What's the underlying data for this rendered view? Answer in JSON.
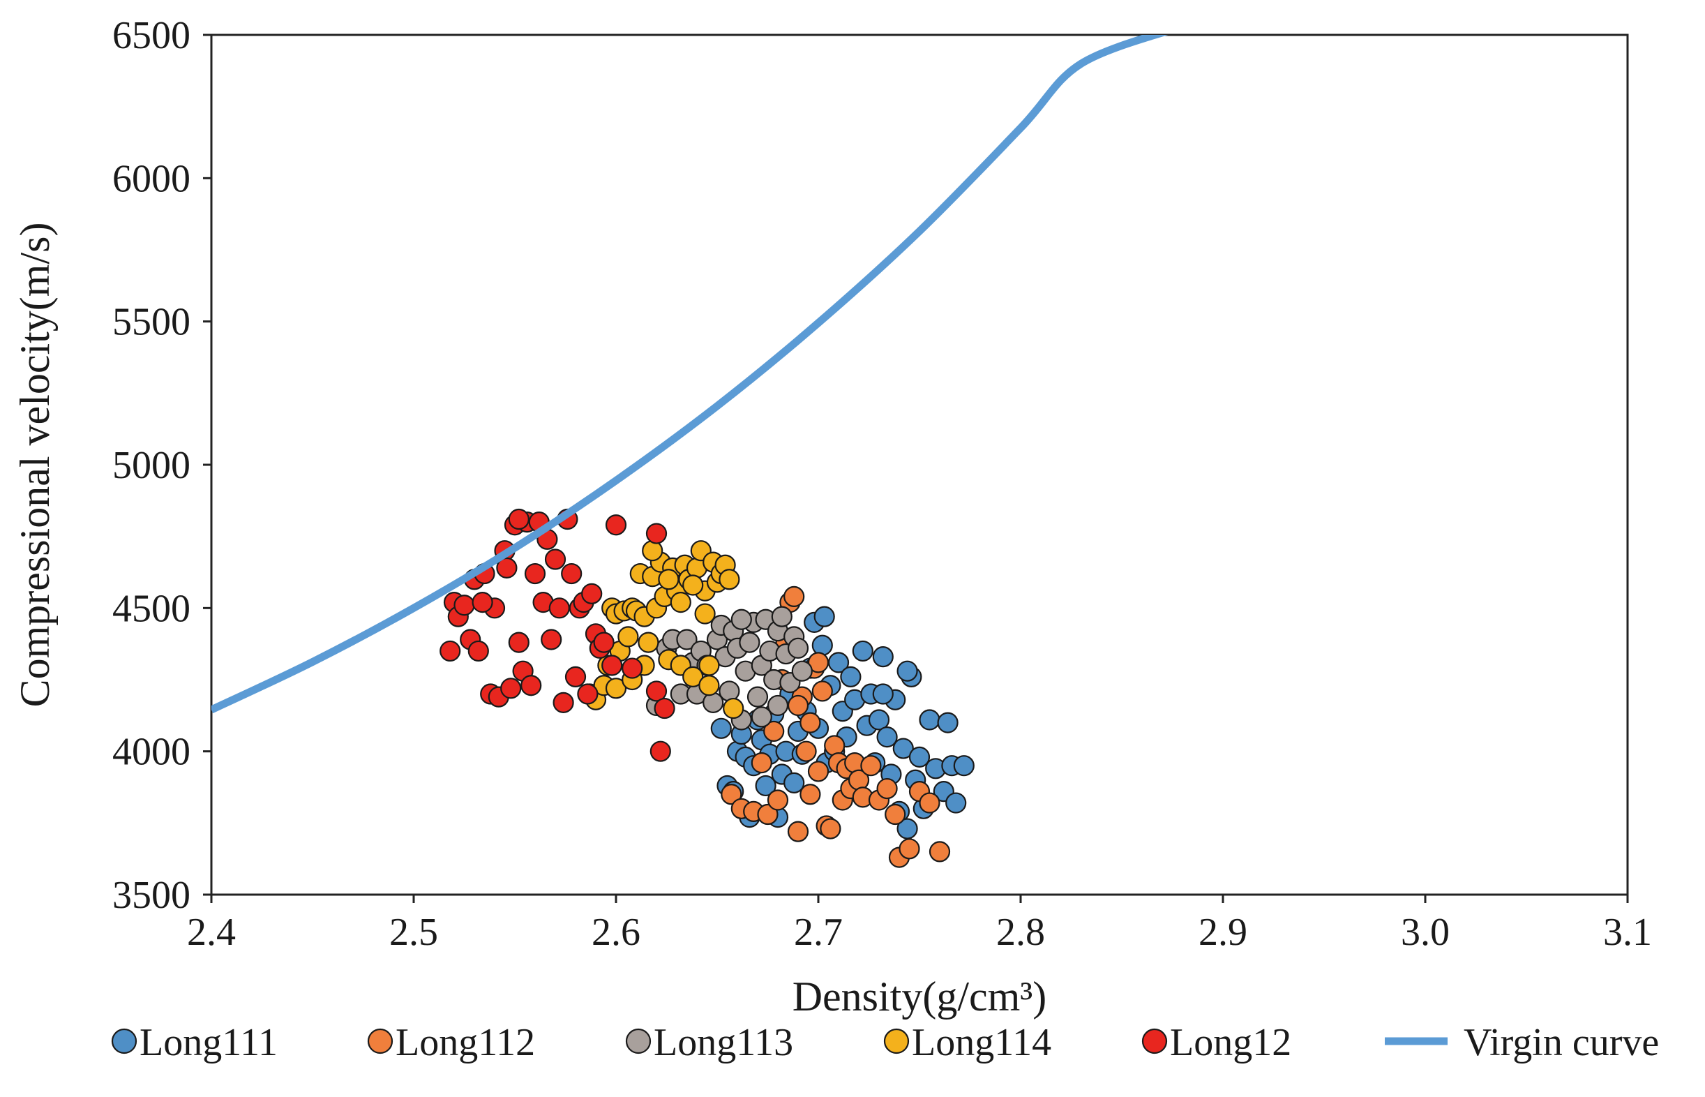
{
  "chart_data": {
    "type": "scatter",
    "xlabel": "Density(g/cm³)",
    "ylabel": "Compressional velocity(m/s)",
    "xlim": [
      2.4,
      3.1
    ],
    "ylim": [
      3500,
      6500
    ],
    "x_ticks": [
      "2.4",
      "2.5",
      "2.6",
      "2.7",
      "2.8",
      "2.9",
      "3.0",
      "3.1"
    ],
    "y_ticks": [
      "3500",
      "4000",
      "4500",
      "5000",
      "5500",
      "6000",
      "6500"
    ],
    "grid": false,
    "legend_position": "bottom",
    "series": [
      {
        "name": "Long111",
        "color": "#4f8fc6",
        "points": [
          [
            2.652,
            4080
          ],
          [
            2.655,
            3880
          ],
          [
            2.658,
            3860
          ],
          [
            2.66,
            4000
          ],
          [
            2.662,
            4060
          ],
          [
            2.664,
            3980
          ],
          [
            2.666,
            3770
          ],
          [
            2.668,
            3950
          ],
          [
            2.67,
            4110
          ],
          [
            2.672,
            4040
          ],
          [
            2.674,
            3880
          ],
          [
            2.676,
            3990
          ],
          [
            2.678,
            4130
          ],
          [
            2.68,
            3770
          ],
          [
            2.682,
            3920
          ],
          [
            2.684,
            4000
          ],
          [
            2.686,
            4200
          ],
          [
            2.688,
            3890
          ],
          [
            2.69,
            4070
          ],
          [
            2.692,
            3990
          ],
          [
            2.694,
            4140
          ],
          [
            2.696,
            4290
          ],
          [
            2.698,
            4450
          ],
          [
            2.7,
            4080
          ],
          [
            2.702,
            4370
          ],
          [
            2.704,
            3960
          ],
          [
            2.706,
            4230
          ],
          [
            2.708,
            4000
          ],
          [
            2.71,
            4310
          ],
          [
            2.712,
            4140
          ],
          [
            2.714,
            4050
          ],
          [
            2.716,
            4260
          ],
          [
            2.718,
            4180
          ],
          [
            2.72,
            3900
          ],
          [
            2.722,
            4350
          ],
          [
            2.724,
            4090
          ],
          [
            2.726,
            4200
          ],
          [
            2.728,
            3960
          ],
          [
            2.73,
            4110
          ],
          [
            2.732,
            4330
          ],
          [
            2.734,
            4050
          ],
          [
            2.736,
            3920
          ],
          [
            2.738,
            4180
          ],
          [
            2.74,
            3790
          ],
          [
            2.742,
            4010
          ],
          [
            2.744,
            3730
          ],
          [
            2.746,
            4260
          ],
          [
            2.748,
            3900
          ],
          [
            2.75,
            3980
          ],
          [
            2.752,
            3800
          ],
          [
            2.755,
            4110
          ],
          [
            2.758,
            3940
          ],
          [
            2.762,
            3860
          ],
          [
            2.764,
            4100
          ],
          [
            2.766,
            3950
          ],
          [
            2.768,
            3820
          ],
          [
            2.772,
            3950
          ],
          [
            2.744,
            4280
          ],
          [
            2.732,
            4200
          ],
          [
            2.703,
            4470
          ]
        ]
      },
      {
        "name": "Long112",
        "color": "#f07f3c",
        "points": [
          [
            2.657,
            3850
          ],
          [
            2.662,
            3800
          ],
          [
            2.668,
            3790
          ],
          [
            2.675,
            3780
          ],
          [
            2.68,
            3830
          ],
          [
            2.684,
            4380
          ],
          [
            2.686,
            4520
          ],
          [
            2.688,
            4540
          ],
          [
            2.69,
            3720
          ],
          [
            2.692,
            4190
          ],
          [
            2.694,
            4000
          ],
          [
            2.696,
            3850
          ],
          [
            2.698,
            4290
          ],
          [
            2.7,
            3930
          ],
          [
            2.702,
            4210
          ],
          [
            2.704,
            3740
          ],
          [
            2.706,
            3730
          ],
          [
            2.708,
            4020
          ],
          [
            2.71,
            3960
          ],
          [
            2.712,
            3830
          ],
          [
            2.714,
            3940
          ],
          [
            2.716,
            3870
          ],
          [
            2.718,
            3960
          ],
          [
            2.72,
            3900
          ],
          [
            2.722,
            3840
          ],
          [
            2.726,
            3950
          ],
          [
            2.73,
            3830
          ],
          [
            2.734,
            3870
          ],
          [
            2.738,
            3780
          ],
          [
            2.74,
            3630
          ],
          [
            2.745,
            3660
          ],
          [
            2.75,
            3860
          ],
          [
            2.755,
            3820
          ],
          [
            2.76,
            3650
          ],
          [
            2.682,
            4250
          ],
          [
            2.69,
            4160
          ],
          [
            2.696,
            4100
          ],
          [
            2.7,
            4310
          ],
          [
            2.678,
            4070
          ],
          [
            2.672,
            3960
          ]
        ]
      },
      {
        "name": "Long113",
        "color": "#a8a09c",
        "points": [
          [
            2.62,
            4160
          ],
          [
            2.625,
            4360
          ],
          [
            2.628,
            4390
          ],
          [
            2.632,
            4200
          ],
          [
            2.635,
            4390
          ],
          [
            2.638,
            4310
          ],
          [
            2.64,
            4200
          ],
          [
            2.642,
            4350
          ],
          [
            2.645,
            4300
          ],
          [
            2.648,
            4170
          ],
          [
            2.65,
            4390
          ],
          [
            2.652,
            4440
          ],
          [
            2.654,
            4330
          ],
          [
            2.656,
            4210
          ],
          [
            2.658,
            4420
          ],
          [
            2.66,
            4360
          ],
          [
            2.662,
            4110
          ],
          [
            2.664,
            4280
          ],
          [
            2.666,
            4380
          ],
          [
            2.668,
            4450
          ],
          [
            2.67,
            4190
          ],
          [
            2.672,
            4300
          ],
          [
            2.674,
            4460
          ],
          [
            2.676,
            4350
          ],
          [
            2.678,
            4250
          ],
          [
            2.68,
            4420
          ],
          [
            2.682,
            4470
          ],
          [
            2.684,
            4340
          ],
          [
            2.686,
            4240
          ],
          [
            2.688,
            4400
          ],
          [
            2.69,
            4360
          ],
          [
            2.692,
            4280
          ],
          [
            2.662,
            4460
          ],
          [
            2.672,
            4120
          ],
          [
            2.68,
            4160
          ]
        ]
      },
      {
        "name": "Long114",
        "color": "#f4b11c",
        "points": [
          [
            2.587,
            4200
          ],
          [
            2.59,
            4180
          ],
          [
            2.594,
            4230
          ],
          [
            2.596,
            4300
          ],
          [
            2.598,
            4500
          ],
          [
            2.6,
            4480
          ],
          [
            2.602,
            4350
          ],
          [
            2.604,
            4490
          ],
          [
            2.606,
            4400
          ],
          [
            2.608,
            4500
          ],
          [
            2.61,
            4490
          ],
          [
            2.612,
            4620
          ],
          [
            2.614,
            4470
          ],
          [
            2.616,
            4380
          ],
          [
            2.618,
            4610
          ],
          [
            2.62,
            4500
          ],
          [
            2.622,
            4660
          ],
          [
            2.624,
            4540
          ],
          [
            2.626,
            4320
          ],
          [
            2.628,
            4640
          ],
          [
            2.63,
            4560
          ],
          [
            2.632,
            4300
          ],
          [
            2.634,
            4650
          ],
          [
            2.636,
            4600
          ],
          [
            2.638,
            4260
          ],
          [
            2.64,
            4640
          ],
          [
            2.642,
            4700
          ],
          [
            2.644,
            4560
          ],
          [
            2.646,
            4230
          ],
          [
            2.648,
            4660
          ],
          [
            2.65,
            4590
          ],
          [
            2.652,
            4620
          ],
          [
            2.654,
            4650
          ],
          [
            2.656,
            4600
          ],
          [
            2.658,
            4150
          ],
          [
            2.6,
            4220
          ],
          [
            2.608,
            4250
          ],
          [
            2.614,
            4300
          ],
          [
            2.618,
            4700
          ],
          [
            2.626,
            4600
          ],
          [
            2.632,
            4520
          ],
          [
            2.638,
            4580
          ],
          [
            2.644,
            4480
          ],
          [
            2.646,
            4300
          ]
        ]
      },
      {
        "name": "Long12",
        "color": "#e8261f",
        "points": [
          [
            2.518,
            4350
          ],
          [
            2.52,
            4520
          ],
          [
            2.522,
            4470
          ],
          [
            2.525,
            4510
          ],
          [
            2.528,
            4390
          ],
          [
            2.53,
            4600
          ],
          [
            2.532,
            4350
          ],
          [
            2.535,
            4620
          ],
          [
            2.538,
            4200
          ],
          [
            2.54,
            4500
          ],
          [
            2.542,
            4190
          ],
          [
            2.545,
            4700
          ],
          [
            2.548,
            4220
          ],
          [
            2.55,
            4790
          ],
          [
            2.552,
            4380
          ],
          [
            2.554,
            4280
          ],
          [
            2.556,
            4800
          ],
          [
            2.558,
            4230
          ],
          [
            2.56,
            4620
          ],
          [
            2.562,
            4800
          ],
          [
            2.564,
            4520
          ],
          [
            2.566,
            4740
          ],
          [
            2.568,
            4390
          ],
          [
            2.57,
            4670
          ],
          [
            2.572,
            4500
          ],
          [
            2.574,
            4170
          ],
          [
            2.576,
            4810
          ],
          [
            2.578,
            4620
          ],
          [
            2.58,
            4260
          ],
          [
            2.582,
            4500
          ],
          [
            2.584,
            4520
          ],
          [
            2.586,
            4200
          ],
          [
            2.588,
            4550
          ],
          [
            2.59,
            4410
          ],
          [
            2.592,
            4360
          ],
          [
            2.594,
            4380
          ],
          [
            2.598,
            4300
          ],
          [
            2.6,
            4790
          ],
          [
            2.608,
            4290
          ],
          [
            2.62,
            4760
          ],
          [
            2.62,
            4210
          ],
          [
            2.622,
            4000
          ],
          [
            2.624,
            4150
          ],
          [
            2.552,
            4810
          ],
          [
            2.546,
            4640
          ],
          [
            2.534,
            4520
          ]
        ]
      }
    ],
    "line_series": [
      {
        "name": "Virgin curve",
        "color": "#5b9bd5",
        "points": [
          [
            2.4,
            4145
          ],
          [
            2.45,
            4312
          ],
          [
            2.5,
            4500
          ],
          [
            2.55,
            4710
          ],
          [
            2.6,
            4945
          ],
          [
            2.65,
            5205
          ],
          [
            2.7,
            5495
          ],
          [
            2.75,
            5815
          ],
          [
            2.8,
            6175
          ],
          [
            2.83,
            6400
          ],
          [
            2.88,
            6530
          ]
        ]
      }
    ]
  }
}
